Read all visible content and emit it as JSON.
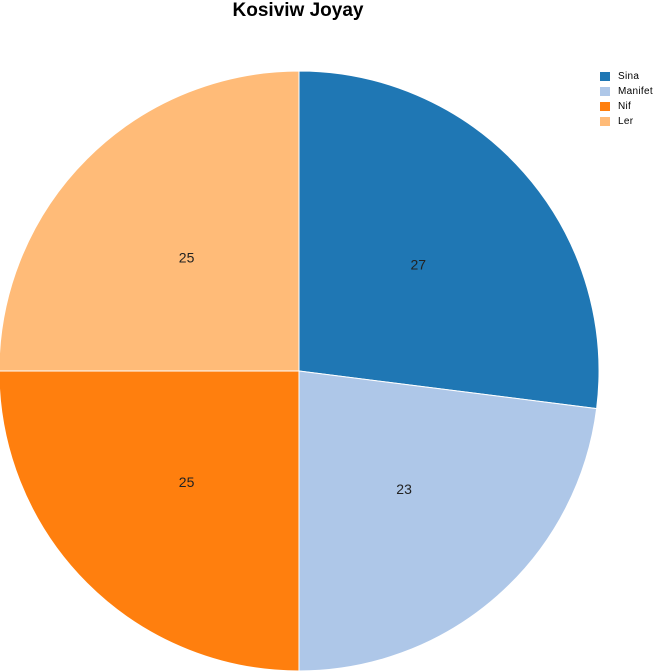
{
  "chart_data": {
    "type": "pie",
    "title": "Kosiviw Joyay",
    "categories": [
      "Sina",
      "Manifet",
      "Nif",
      "Ler"
    ],
    "values": [
      27,
      23,
      25,
      25
    ],
    "colors": [
      "#1f77b4",
      "#aec7e8",
      "#ff7f0e",
      "#ffbb78"
    ],
    "legend_position": "top-right"
  }
}
